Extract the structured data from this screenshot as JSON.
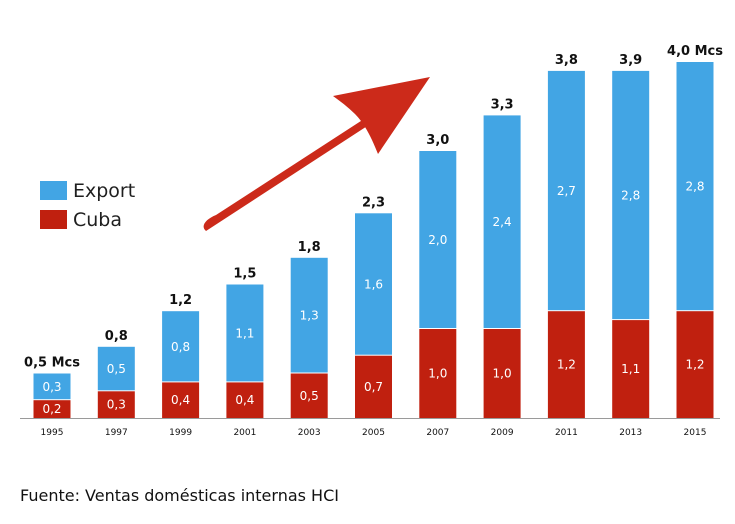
{
  "chart_data": {
    "type": "bar",
    "stacked": true,
    "categories": [
      "1995",
      "1997",
      "1999",
      "2001",
      "2003",
      "2005",
      "2007",
      "2009",
      "2011",
      "2013",
      "2015"
    ],
    "series": [
      {
        "name": "Cuba",
        "color": "#c0200f",
        "values": [
          0.2,
          0.3,
          0.4,
          0.4,
          0.5,
          0.7,
          1.0,
          1.0,
          1.2,
          1.1,
          1.2
        ],
        "labels": [
          "0,2",
          "0,3",
          "0,4",
          "0,4",
          "0,5",
          "0,7",
          "1,0",
          "1,0",
          "1,2",
          "1,1",
          "1,2"
        ]
      },
      {
        "name": "Export",
        "color": "#42a5e4",
        "values": [
          0.3,
          0.5,
          0.8,
          1.1,
          1.3,
          1.6,
          2.0,
          2.4,
          2.7,
          2.8,
          2.8
        ],
        "labels": [
          "0,3",
          "0,5",
          "0,8",
          "1,1",
          "1,3",
          "1,6",
          "2,0",
          "2,4",
          "2,7",
          "2,8",
          "2,8"
        ]
      }
    ],
    "totals": [
      0.5,
      0.8,
      1.2,
      1.5,
      1.8,
      2.3,
      3.0,
      3.3,
      3.8,
      3.9,
      4.0
    ],
    "total_labels": [
      "0,5 Mcs",
      "0,8",
      "1,2",
      "1,5",
      "1,8",
      "2,3",
      "3,0",
      "3,3",
      "3,8",
      "3,9",
      "4,0 Mcs"
    ],
    "ylim": [
      0,
      4.0
    ],
    "grid": false,
    "legend_position": "left",
    "legend_order": [
      "Export",
      "Cuba"
    ],
    "annotation": "red-upward-arrow",
    "arrow_color": "#cc2a1a"
  },
  "source_note": "Fuente: Ventas domésticas internas HCI"
}
